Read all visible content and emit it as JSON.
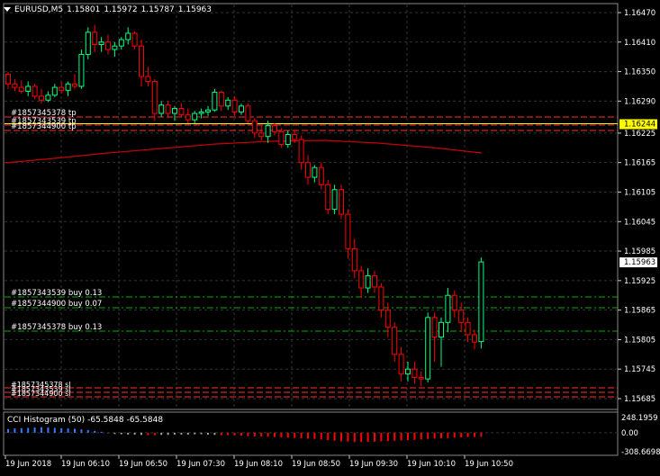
{
  "header": {
    "symbol_timeframe": "EURUSD,M5",
    "open": "1.15801",
    "high": "1.15972",
    "low": "1.15787",
    "close": "1.15963"
  },
  "price_axis": {
    "ticks": [
      "1.16470",
      "1.16410",
      "1.16350",
      "1.16290",
      "1.16225",
      "1.16165",
      "1.16105",
      "1.16045",
      "1.15985",
      "1.15925",
      "1.15865",
      "1.15805",
      "1.15745",
      "1.15685"
    ],
    "yellow_level": "1.16244",
    "current_price": "1.15963"
  },
  "time_axis": {
    "ticks": [
      "19 Jun 2018",
      "19 Jun 06:10",
      "19 Jun 06:50",
      "19 Jun 07:30",
      "19 Jun 08:10",
      "19 Jun 08:50",
      "19 Jun 09:30",
      "19 Jun 10:10",
      "19 Jun 10:50"
    ]
  },
  "order_labels": {
    "tp": [
      "#1857345378 tp",
      "#1857343539 tp",
      "#1857344900 tp"
    ],
    "buy": [
      "#1857343539 buy 0.13",
      "#1857344900 buy 0.07",
      "#1857345378 buy 0.13"
    ],
    "sl": [
      "#1857345378 sl",
      "#1857343539 sl",
      "#1857344900 sl"
    ]
  },
  "indicator": {
    "name": "CCI Histogram (50)",
    "value1": "-65.5848",
    "value2": "-65.5848",
    "ticks": [
      "248.1959",
      "0.00",
      "-308.6698"
    ]
  },
  "colors": {
    "bull": "#00ff7f",
    "bear": "#ff0000",
    "grid": "#333333",
    "ma": "#cc0000",
    "buy_line": "#00b000",
    "order_line": "#ff3030",
    "yellow": "#ffff00",
    "cci_pos": "#3a78ff",
    "cci_neutral": "#a0a0a0",
    "cci_neg": "#ff0000"
  },
  "candles": [
    [
      1.16345,
      1.1635,
      1.16315,
      1.16325
    ],
    [
      1.16325,
      1.16335,
      1.1631,
      1.16318
    ],
    [
      1.16318,
      1.16332,
      1.16305,
      1.1631
    ],
    [
      1.1631,
      1.1633,
      1.163,
      1.1632
    ],
    [
      1.1632,
      1.16325,
      1.16295,
      1.163
    ],
    [
      1.163,
      1.16315,
      1.16285,
      1.16292
    ],
    [
      1.16292,
      1.1631,
      1.16288,
      1.16302
    ],
    [
      1.16302,
      1.16325,
      1.16298,
      1.16318
    ],
    [
      1.16318,
      1.1633,
      1.16305,
      1.16312
    ],
    [
      1.16312,
      1.1633,
      1.163,
      1.16325
    ],
    [
      1.16325,
      1.16345,
      1.16315,
      1.1632
    ],
    [
      1.1632,
      1.16395,
      1.16315,
      1.16385
    ],
    [
      1.16385,
      1.1644,
      1.16375,
      1.1643
    ],
    [
      1.1643,
      1.16445,
      1.1639,
      1.16405
    ],
    [
      1.16405,
      1.1642,
      1.1639,
      1.1641
    ],
    [
      1.1641,
      1.16425,
      1.16385,
      1.16395
    ],
    [
      1.16395,
      1.1641,
      1.1638,
      1.16402
    ],
    [
      1.16402,
      1.1642,
      1.16395,
      1.16415
    ],
    [
      1.16415,
      1.1644,
      1.16405,
      1.16428
    ],
    [
      1.16428,
      1.16432,
      1.16395,
      1.16402
    ],
    [
      1.16402,
      1.16415,
      1.1632,
      1.1634
    ],
    [
      1.1634,
      1.1636,
      1.1632,
      1.1633
    ],
    [
      1.1633,
      1.16335,
      1.1625,
      1.16265
    ],
    [
      1.16265,
      1.1629,
      1.16258,
      1.16282
    ],
    [
      1.16282,
      1.1629,
      1.16258,
      1.16265
    ],
    [
      1.16265,
      1.1628,
      1.1625,
      1.16275
    ],
    [
      1.16275,
      1.16285,
      1.16258,
      1.16262
    ],
    [
      1.16262,
      1.16275,
      1.16245,
      1.16252
    ],
    [
      1.16252,
      1.1627,
      1.16245,
      1.16265
    ],
    [
      1.16265,
      1.16275,
      1.16255,
      1.16268
    ],
    [
      1.16268,
      1.1628,
      1.1626,
      1.16272
    ],
    [
      1.16272,
      1.16315,
      1.16268,
      1.16308
    ],
    [
      1.16308,
      1.16312,
      1.1627,
      1.1628
    ],
    [
      1.1628,
      1.16298,
      1.16272,
      1.16292
    ],
    [
      1.16292,
      1.163,
      1.1626,
      1.16268
    ],
    [
      1.16268,
      1.16285,
      1.16262,
      1.1628
    ],
    [
      1.1628,
      1.16285,
      1.16245,
      1.1625
    ],
    [
      1.1625,
      1.16255,
      1.16215,
      1.16225
    ],
    [
      1.16225,
      1.16242,
      1.1621,
      1.16218
    ],
    [
      1.16218,
      1.1625,
      1.16205,
      1.1624
    ],
    [
      1.1624,
      1.16245,
      1.1622,
      1.16228
    ],
    [
      1.16228,
      1.16235,
      1.16195,
      1.16202
    ],
    [
      1.16202,
      1.1623,
      1.16195,
      1.16222
    ],
    [
      1.16222,
      1.1623,
      1.16205,
      1.16212
    ],
    [
      1.16212,
      1.1622,
      1.1615,
      1.16165
    ],
    [
      1.16165,
      1.1618,
      1.1612,
      1.16135
    ],
    [
      1.16135,
      1.1616,
      1.16125,
      1.16155
    ],
    [
      1.16155,
      1.16165,
      1.1611,
      1.1612
    ],
    [
      1.1612,
      1.1613,
      1.1606,
      1.1607
    ],
    [
      1.1607,
      1.1612,
      1.1606,
      1.1611
    ],
    [
      1.1611,
      1.1612,
      1.1605,
      1.1606
    ],
    [
      1.1606,
      1.1607,
      1.1597,
      1.1599
    ],
    [
      1.1599,
      1.1601,
      1.1593,
      1.15945
    ],
    [
      1.15945,
      1.15955,
      1.1589,
      1.1591
    ],
    [
      1.1591,
      1.1595,
      1.159,
      1.15935
    ],
    [
      1.15935,
      1.15945,
      1.159,
      1.15912
    ],
    [
      1.15912,
      1.1592,
      1.1585,
      1.15865
    ],
    [
      1.15865,
      1.1588,
      1.1581,
      1.1583
    ],
    [
      1.1583,
      1.1584,
      1.1576,
      1.15775
    ],
    [
      1.15775,
      1.1579,
      1.1572,
      1.15735
    ],
    [
      1.15735,
      1.1576,
      1.1572,
      1.15745
    ],
    [
      1.15745,
      1.1576,
      1.15715,
      1.15728
    ],
    [
      1.15728,
      1.1574,
      1.1571,
      1.15725
    ],
    [
      1.15725,
      1.1586,
      1.15718,
      1.1585
    ],
    [
      1.1585,
      1.1586,
      1.1576,
      1.1581
    ],
    [
      1.1581,
      1.1585,
      1.1575,
      1.1584
    ],
    [
      1.1584,
      1.1591,
      1.1582,
      1.15895
    ],
    [
      1.15895,
      1.15905,
      1.1585,
      1.15865
    ],
    [
      1.15865,
      1.1588,
      1.1582,
      1.1584
    ],
    [
      1.1584,
      1.1585,
      1.158,
      1.15815
    ],
    [
      1.15815,
      1.15825,
      1.15785,
      1.158
    ],
    [
      1.15801,
      1.15972,
      1.15787,
      1.15963
    ]
  ],
  "cci_values": [
    60,
    70,
    75,
    80,
    85,
    90,
    85,
    80,
    75,
    70,
    65,
    55,
    45,
    30,
    15,
    -5,
    -20,
    -25,
    -30,
    -30,
    -35,
    -40,
    -40,
    -35,
    -35,
    -30,
    -30,
    -30,
    -25,
    -25,
    -30,
    -35,
    -40,
    -40,
    -45,
    -50,
    -55,
    -60,
    -60,
    -65,
    -70,
    -75,
    -80,
    -85,
    -90,
    -95,
    -100,
    -110,
    -120,
    -130,
    -140,
    -145,
    -150,
    -150,
    -148,
    -145,
    -140,
    -135,
    -130,
    -125,
    -120,
    -115,
    -110,
    -100,
    -95,
    -90,
    -85,
    -80,
    -75,
    -70,
    -68,
    -65.5848
  ]
}
